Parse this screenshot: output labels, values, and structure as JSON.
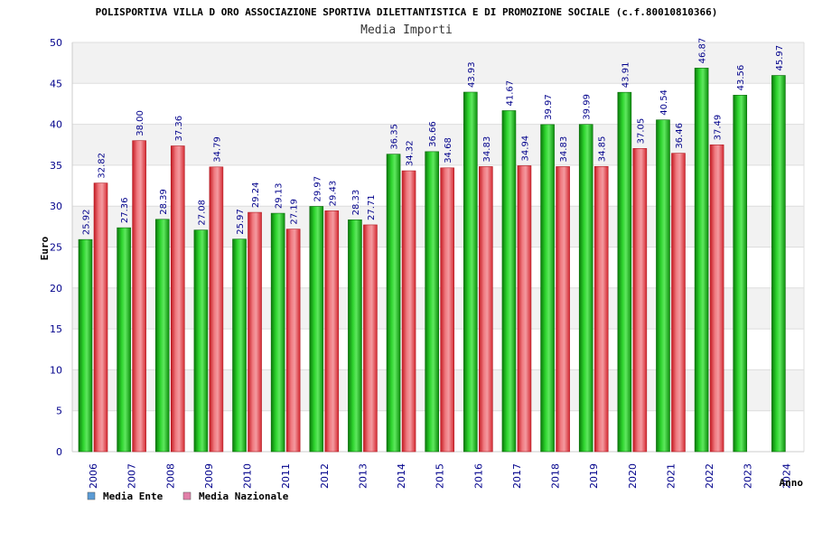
{
  "chart_data": {
    "type": "bar",
    "title": "POLISPORTIVA VILLA D ORO ASSOCIAZIONE SPORTIVA DILETTANTISTICA E DI PROMOZIONE SOCIALE (c.f.80010810366)",
    "subtitle": "Media Importi",
    "xlabel": "Anno",
    "ylabel": "Euro",
    "ylim": [
      0,
      50
    ],
    "yticks": [
      0,
      5,
      10,
      15,
      20,
      25,
      30,
      35,
      40,
      45,
      50
    ],
    "grid": true,
    "legend_position": "bottom-left",
    "categories": [
      "2006",
      "2007",
      "2008",
      "2009",
      "2010",
      "2011",
      "2012",
      "2013",
      "2014",
      "2015",
      "2016",
      "2017",
      "2018",
      "2019",
      "2020",
      "2021",
      "2022",
      "2023",
      "2024"
    ],
    "series": [
      {
        "name": "Media Ente",
        "color": "#1fae1f",
        "legend_color": "#5b9bd5",
        "values": [
          25.92,
          27.36,
          28.39,
          27.08,
          25.97,
          29.13,
          29.97,
          28.33,
          36.35,
          36.66,
          43.93,
          41.67,
          39.97,
          39.99,
          43.91,
          40.54,
          46.87,
          43.56,
          45.97
        ],
        "labels": [
          "25.92",
          "27.36",
          "28.39",
          "27.08",
          "25.97",
          "29.13",
          "29.97",
          "28.33",
          "36.35",
          "36.66",
          "43.93",
          "41.67",
          "39.97",
          "39.99",
          "43.91",
          "40.54",
          "46.87",
          "43.56",
          "45.97"
        ]
      },
      {
        "name": "Media Nazionale",
        "color": "#e8323c",
        "legend_color": "#e27fa8",
        "values": [
          32.82,
          38.0,
          37.36,
          34.79,
          29.24,
          27.19,
          29.43,
          27.71,
          34.32,
          34.68,
          34.83,
          34.94,
          34.83,
          34.85,
          37.05,
          36.46,
          37.49,
          null,
          null
        ],
        "labels": [
          "32.82",
          "38.00",
          "37.36",
          "34.79",
          "29.24",
          "27.19",
          "29.43",
          "27.71",
          "34.32",
          "34.68",
          "34.83",
          "34.94",
          "34.83",
          "34.85",
          "37.05",
          "36.46",
          "37.49",
          null,
          null
        ]
      }
    ]
  }
}
